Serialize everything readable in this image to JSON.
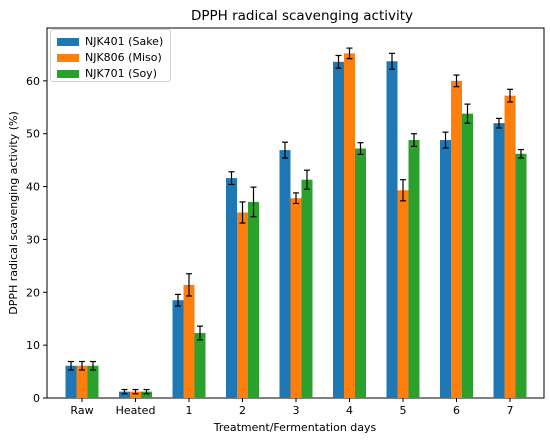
{
  "chart_data": {
    "type": "bar",
    "title": "DPPH radical scavenging activity",
    "xlabel": "Treatment/Fermentation days",
    "ylabel": "DPPH radical scavenging activity (%)",
    "categories": [
      "Raw",
      "Heated",
      "1",
      "2",
      "3",
      "4",
      "5",
      "6",
      "7"
    ],
    "ylim": [
      0,
      70
    ],
    "yticks": [
      0,
      10,
      20,
      30,
      40,
      50,
      60
    ],
    "grid": false,
    "legend_position": "top-left",
    "series": [
      {
        "name": "NJK401 (Sake)",
        "color": "#1f77b4",
        "values": [
          6.1,
          1.2,
          18.5,
          41.6,
          46.9,
          63.6,
          63.7,
          48.8,
          52.0
        ],
        "errors": [
          0.8,
          0.4,
          1.1,
          1.2,
          1.5,
          1.2,
          1.5,
          1.5,
          0.9
        ]
      },
      {
        "name": "NJK806 (Miso)",
        "color": "#ff7f0e",
        "values": [
          6.1,
          1.2,
          21.4,
          35.1,
          37.8,
          65.2,
          39.3,
          60.0,
          57.2
        ],
        "errors": [
          0.8,
          0.4,
          2.1,
          2.0,
          1.0,
          1.0,
          2.0,
          1.1,
          1.2
        ]
      },
      {
        "name": "NJK701 (Soy)",
        "color": "#2ca02c",
        "values": [
          6.1,
          1.2,
          12.3,
          37.1,
          41.3,
          47.2,
          48.8,
          53.8,
          46.2
        ],
        "errors": [
          0.8,
          0.4,
          1.3,
          2.8,
          1.8,
          1.1,
          1.2,
          1.8,
          0.8
        ]
      }
    ]
  }
}
